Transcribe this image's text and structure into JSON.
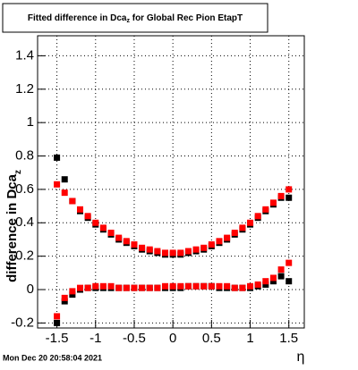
{
  "chart_data": {
    "type": "scatter",
    "title": [
      "Fitted difference in Dca",
      "z",
      " for Global Rec Pion EtapT"
    ],
    "ylabel": [
      "difference in Dca",
      "z"
    ],
    "xlabel": "η",
    "timestamp": "Mon Dec 20 20:58:04 2021",
    "x": [
      -1.5,
      -1.4,
      -1.3,
      -1.2,
      -1.1,
      -1.0,
      -0.9,
      -0.8,
      -0.7,
      -0.6,
      -0.5,
      -0.4,
      -0.3,
      -0.2,
      -0.1,
      0,
      0.1,
      0.2,
      0.3,
      0.4,
      0.5,
      0.6,
      0.7,
      0.8,
      0.9,
      1.0,
      1.1,
      1.2,
      1.3,
      1.4,
      1.5
    ],
    "series": [
      {
        "color": "#000000",
        "values": [
          0.79,
          0.66,
          0.53,
          0.47,
          0.43,
          0.39,
          0.36,
          0.33,
          0.3,
          0.28,
          0.26,
          0.24,
          0.23,
          0.22,
          0.21,
          0.21,
          0.21,
          0.22,
          0.23,
          0.24,
          0.26,
          0.28,
          0.3,
          0.33,
          0.36,
          0.39,
          0.43,
          0.47,
          0.51,
          0.55,
          0.55
        ]
      },
      {
        "color": "#ff0000",
        "values": [
          0.63,
          0.58,
          0.53,
          0.48,
          0.44,
          0.4,
          0.37,
          0.34,
          0.31,
          0.29,
          0.27,
          0.25,
          0.24,
          0.23,
          0.22,
          0.22,
          0.22,
          0.23,
          0.24,
          0.25,
          0.27,
          0.29,
          0.31,
          0.34,
          0.37,
          0.4,
          0.44,
          0.48,
          0.52,
          0.56,
          0.6
        ]
      },
      {
        "color": "#000000",
        "values": [
          -0.2,
          -0.07,
          -0.03,
          0.0,
          0.01,
          0.01,
          0.01,
          0.01,
          0.01,
          0.01,
          0.01,
          0.01,
          0.01,
          0.01,
          0.01,
          0.01,
          0.01,
          0.02,
          0.02,
          0.02,
          0.02,
          0.01,
          0.01,
          0.01,
          0.01,
          0.01,
          0.02,
          0.03,
          0.05,
          0.08,
          0.05
        ]
      },
      {
        "color": "#ff0000",
        "values": [
          -0.16,
          -0.05,
          -0.01,
          0.01,
          0.01,
          0.02,
          0.02,
          0.02,
          0.01,
          0.01,
          0.01,
          0.01,
          0.01,
          0.01,
          0.02,
          0.02,
          0.02,
          0.02,
          0.02,
          0.02,
          0.02,
          0.02,
          0.02,
          0.01,
          0.01,
          0.02,
          0.03,
          0.05,
          0.07,
          0.12,
          0.16
        ]
      }
    ],
    "xlim": [
      -1.75,
      1.7
    ],
    "ylim": [
      -0.23,
      1.52
    ],
    "xticks": [
      -1.5,
      -1,
      -0.5,
      0,
      0.5,
      1,
      1.5
    ],
    "yticks": [
      -0.2,
      0,
      0.2,
      0.4,
      0.6,
      0.8,
      1,
      1.2,
      1.4
    ],
    "grid": true
  }
}
